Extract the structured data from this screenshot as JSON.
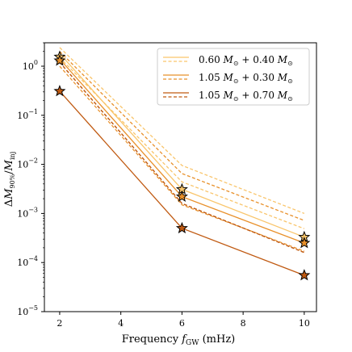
{
  "chart_data": {
    "type": "line",
    "xlabel": "Frequency f_GW (mHz)",
    "xlabel_parts": {
      "main": "Frequency ",
      "var": "f",
      "sub": "GW",
      "unit": " (mHz)"
    },
    "ylabel": "ΔM_90%/M_inj",
    "y_scale": "log",
    "xlim": [
      1.5,
      10.4
    ],
    "ylim": [
      1e-05,
      3
    ],
    "x_ticks": [
      2,
      4,
      6,
      8,
      10
    ],
    "y_ticks": [
      {
        "value": 1e-05,
        "base": "10",
        "exp": "−5"
      },
      {
        "value": 0.0001,
        "base": "10",
        "exp": "−4"
      },
      {
        "value": 0.001,
        "base": "10",
        "exp": "−3"
      },
      {
        "value": 0.01,
        "base": "10",
        "exp": "−2"
      },
      {
        "value": 0.1,
        "base": "10",
        "exp": "−1"
      },
      {
        "value": 1,
        "base": "10",
        "exp": "0"
      }
    ],
    "grid": false,
    "legend_position": "top-right",
    "x": [
      2,
      6,
      10
    ],
    "series": [
      {
        "name": "0.60 M⊙ + 0.40 M⊙",
        "color": "#f9c56b",
        "marker_values": [
          1.55,
          0.0031,
          0.00033
        ],
        "solid_values": [
          1.8,
          0.0031,
          0.00033
        ],
        "upper_dashed": [
          2.4,
          0.0095,
          0.001
        ],
        "lower_dashed": [
          1.5,
          0.0044,
          0.00049
        ]
      },
      {
        "name": "1.05 M⊙ + 0.30 M⊙",
        "color": "#e8902a",
        "marker_values": [
          1.3,
          0.0022,
          0.00025
        ],
        "solid_values": [
          1.4,
          0.0022,
          0.00025
        ],
        "upper_dashed": [
          2.0,
          0.0065,
          0.00072
        ],
        "lower_dashed": [
          1.0,
          0.0015,
          0.00017
        ]
      },
      {
        "name": "1.05 M⊙ + 0.70 M⊙",
        "color": "#c05a12",
        "marker_values": [
          0.31,
          0.0005,
          5.5e-05
        ],
        "solid_values": [
          0.31,
          0.0005,
          5.5e-05
        ],
        "upper_dashed": [
          1.2,
          0.0016,
          0.00016
        ],
        "lower_dashed": [
          1.2,
          0.0016,
          0.00016
        ]
      }
    ],
    "legend_entries": [
      {
        "a": "0.60",
        "b": "0.40"
      },
      {
        "a": "1.05",
        "b": "0.30"
      },
      {
        "a": "1.05",
        "b": "0.70"
      }
    ],
    "mass_symbol": "M",
    "sun_symbol": "⊙",
    "plus": "+",
    "ylabel_parts": {
      "delta": "Δ",
      "var": "M",
      "sub": "90%",
      "slash": "/",
      "var2": "M",
      "sub2": "inj"
    }
  }
}
